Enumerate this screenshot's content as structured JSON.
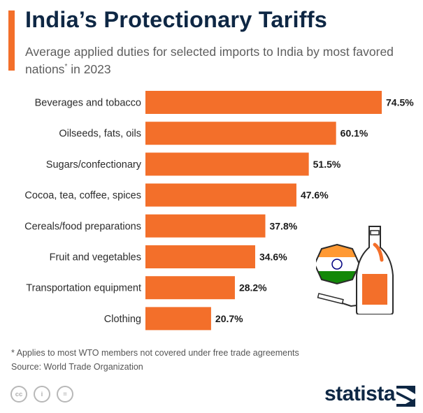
{
  "header": {
    "title": "India’s Protectionary Tariffs",
    "subtitle_main": "Average applied duties for selected imports to India by most favored nations",
    "subtitle_star": "*",
    "subtitle_tail": " in 2023"
  },
  "chart_data": {
    "type": "bar",
    "orientation": "horizontal",
    "title": "India’s Protectionary Tariffs",
    "subtitle": "Average applied duties for selected imports to India by most favored nations* in 2023",
    "categories": [
      "Beverages and tobacco",
      "Oilseeds, fats, oils",
      "Sugars/confectionary",
      "Cocoa, tea, coffee, spices",
      "Cereals/food preparations",
      "Fruit and vegetables",
      "Transportation equipment",
      "Clothing"
    ],
    "values": [
      74.5,
      60.1,
      51.5,
      47.6,
      37.8,
      34.6,
      28.2,
      20.7
    ],
    "value_labels": [
      "74.5%",
      "60.1%",
      "51.5%",
      "47.6%",
      "37.8%",
      "34.6%",
      "28.2%",
      "20.7%"
    ],
    "unit": "%",
    "xlim": [
      0,
      74.5
    ],
    "grid": false,
    "bar_color": "#f36f2a"
  },
  "footer": {
    "footnote": "* Applies to most WTO members not covered under free trade agreements",
    "source": "Source: World Trade Organization",
    "brand": "statista",
    "license_icons": [
      {
        "name": "cc-icon",
        "glyph": "cc"
      },
      {
        "name": "attribution-icon",
        "glyph": "i"
      },
      {
        "name": "no-derivatives-icon",
        "glyph": "="
      }
    ]
  },
  "colors": {
    "accent": "#f36f2a",
    "title": "#0e2744",
    "subtitle": "#5d5d5d",
    "flag_saffron": "#ff9933",
    "flag_green": "#138808",
    "flag_chakra": "#000080"
  }
}
